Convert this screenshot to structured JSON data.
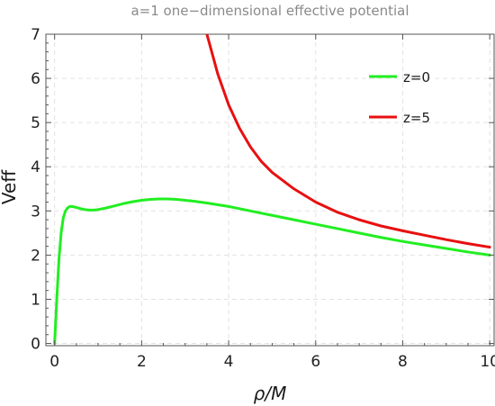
{
  "chart_data": {
    "type": "line",
    "title": "a=1 one−dimensional effective potential",
    "xlabel": "ρ/M",
    "ylabel": "Veff",
    "xlim": [
      -0.2,
      10.1
    ],
    "ylim": [
      -0.05,
      7
    ],
    "x_ticks": [
      0,
      2,
      4,
      6,
      8,
      10
    ],
    "y_ticks": [
      0,
      1,
      2,
      3,
      4,
      5,
      6,
      7
    ],
    "grid": true,
    "legend_position": "top-right",
    "series": [
      {
        "name": "z=0",
        "color": "#22ee22",
        "x": [
          0.0,
          0.05,
          0.1,
          0.15,
          0.2,
          0.25,
          0.3,
          0.35,
          0.4,
          0.45,
          0.5,
          0.6,
          0.7,
          0.8,
          0.9,
          1.0,
          1.2,
          1.4,
          1.6,
          1.8,
          2.0,
          2.2,
          2.4,
          2.6,
          2.8,
          3.0,
          3.2,
          3.5,
          4.0,
          4.5,
          5.0,
          5.5,
          6.0,
          6.5,
          7.0,
          7.5,
          8.0,
          8.5,
          9.0,
          9.5,
          10.0
        ],
        "y": [
          0.0,
          1.0,
          1.9,
          2.5,
          2.85,
          3.0,
          3.07,
          3.1,
          3.1,
          3.09,
          3.08,
          3.05,
          3.03,
          3.02,
          3.02,
          3.03,
          3.07,
          3.12,
          3.17,
          3.21,
          3.24,
          3.26,
          3.27,
          3.27,
          3.26,
          3.24,
          3.22,
          3.18,
          3.1,
          3.0,
          2.9,
          2.8,
          2.7,
          2.6,
          2.5,
          2.4,
          2.31,
          2.23,
          2.15,
          2.07,
          2.0
        ]
      },
      {
        "name": "z=5",
        "color": "#e81010",
        "x": [
          3.5,
          3.75,
          4.0,
          4.25,
          4.5,
          4.75,
          5.0,
          5.5,
          6.0,
          6.5,
          7.0,
          7.5,
          8.0,
          8.5,
          9.0,
          9.5,
          10.0
        ],
        "y": [
          7.0,
          6.1,
          5.4,
          4.87,
          4.45,
          4.12,
          3.87,
          3.5,
          3.2,
          2.97,
          2.8,
          2.66,
          2.55,
          2.45,
          2.35,
          2.26,
          2.18
        ]
      }
    ]
  }
}
